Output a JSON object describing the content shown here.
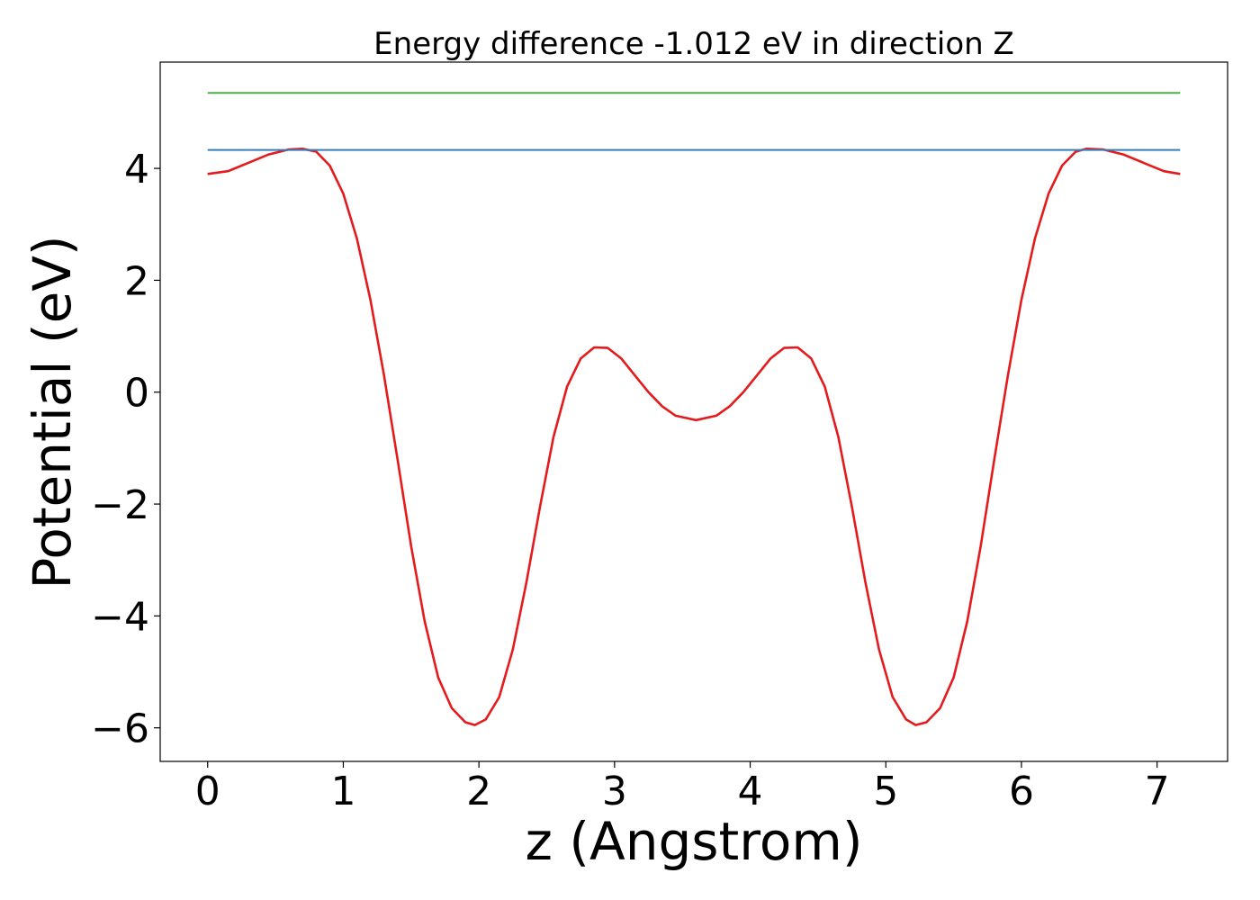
{
  "chart_data": {
    "type": "line",
    "title": "Energy difference -1.012 eV in direction Z",
    "xlabel": "z (Angstrom)",
    "ylabel": "Potential (eV)",
    "xlim": [
      -0.35,
      7.52
    ],
    "ylim": [
      -6.6,
      5.9
    ],
    "xticks": [
      0,
      1,
      2,
      3,
      4,
      5,
      6,
      7
    ],
    "yticks": [
      -6,
      -4,
      -2,
      0,
      2,
      4
    ],
    "ytick_labels": [
      "−6",
      "−4",
      "−2",
      "0",
      "2",
      "4"
    ],
    "grid": false,
    "series": [
      {
        "color": "#e41a1c",
        "x": [
          0.0,
          0.15,
          0.3,
          0.45,
          0.6,
          0.7,
          0.8,
          0.9,
          1.0,
          1.1,
          1.2,
          1.3,
          1.4,
          1.5,
          1.6,
          1.7,
          1.8,
          1.9,
          1.97,
          2.05,
          2.15,
          2.25,
          2.35,
          2.45,
          2.55,
          2.65,
          2.75,
          2.85,
          2.95,
          3.05,
          3.15,
          3.25,
          3.35,
          3.45,
          3.6,
          3.75,
          3.85,
          3.95,
          4.05,
          4.15,
          4.25,
          4.35,
          4.45,
          4.55,
          4.65,
          4.75,
          4.85,
          4.95,
          5.05,
          5.15,
          5.22,
          5.3,
          5.4,
          5.5,
          5.6,
          5.7,
          5.8,
          5.9,
          6.0,
          6.1,
          6.2,
          6.3,
          6.4,
          6.48,
          6.6,
          6.75,
          6.9,
          7.05,
          7.17
        ],
        "y": [
          3.9,
          3.95,
          4.1,
          4.25,
          4.34,
          4.35,
          4.3,
          4.05,
          3.55,
          2.75,
          1.65,
          0.3,
          -1.2,
          -2.75,
          -4.1,
          -5.1,
          -5.65,
          -5.9,
          -5.95,
          -5.85,
          -5.45,
          -4.6,
          -3.4,
          -2.05,
          -0.8,
          0.1,
          0.6,
          0.8,
          0.79,
          0.6,
          0.3,
          0.0,
          -0.25,
          -0.42,
          -0.5,
          -0.42,
          -0.25,
          0.0,
          0.3,
          0.6,
          0.79,
          0.8,
          0.6,
          0.1,
          -0.8,
          -2.05,
          -3.4,
          -4.6,
          -5.45,
          -5.85,
          -5.95,
          -5.9,
          -5.65,
          -5.1,
          -4.1,
          -2.75,
          -1.2,
          0.3,
          1.65,
          2.75,
          3.55,
          4.05,
          4.3,
          4.35,
          4.34,
          4.25,
          4.1,
          3.95,
          3.9
        ]
      },
      {
        "color": "#377eb8",
        "x": [
          0.0,
          7.17
        ],
        "y": [
          4.33,
          4.33
        ]
      },
      {
        "color": "#4daf4a",
        "x": [
          0.0,
          7.17
        ],
        "y": [
          5.35,
          5.35
        ]
      }
    ]
  }
}
